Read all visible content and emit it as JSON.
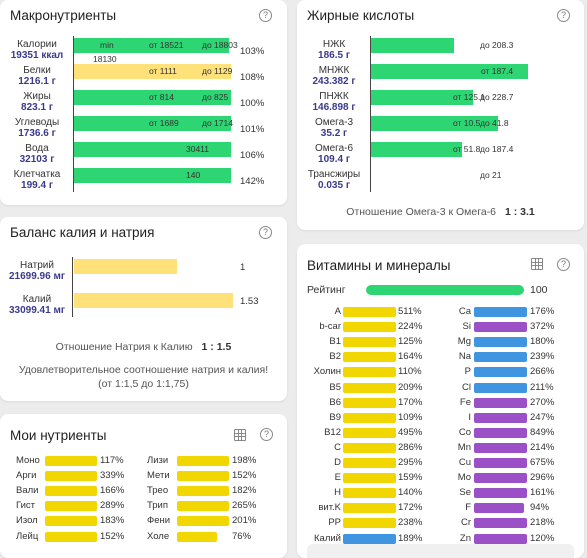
{
  "macro": {
    "title": "Макронутриенты",
    "rows": [
      {
        "name": "Калории",
        "value": "19351 ккал",
        "fill": 0.99,
        "color": "green",
        "min_label": "min",
        "from": "от 18521",
        "to": "до 18803",
        "below": "18130",
        "pct": "103%"
      },
      {
        "name": "Белки",
        "value": "1216.1 г",
        "fill": 1.0,
        "color": "yellow",
        "from": "от 1111",
        "to": "до 1129",
        "pct": "108%"
      },
      {
        "name": "Жиры",
        "value": "823.1 г",
        "fill": 1.0,
        "color": "green",
        "from": "от 814",
        "to": "до 825",
        "pct": "100%"
      },
      {
        "name": "Углеводы",
        "value": "1736.6 г",
        "fill": 1.0,
        "color": "green",
        "from": "от 1689",
        "to": "до 1714",
        "pct": "101%"
      },
      {
        "name": "Вода",
        "value": "32103 г",
        "fill": 1.0,
        "color": "green",
        "center": "30411",
        "pct": "106%"
      },
      {
        "name": "Клетчатка",
        "value": "199.4 г",
        "fill": 1.0,
        "color": "green",
        "center": "140",
        "pct": "142%"
      }
    ]
  },
  "fat": {
    "title": "Жирные кислоты",
    "rows": [
      {
        "name": "НЖК",
        "value": "186.5 г",
        "fill": 0.53,
        "to": "до 208.3"
      },
      {
        "name": "МНЖК",
        "value": "243.382 г",
        "fill": 1.0,
        "center": "от 187.4"
      },
      {
        "name": "ПНЖК",
        "value": "146.898 г",
        "fill": 0.65,
        "from": "от 125.1",
        "to": "до 228.7"
      },
      {
        "name": "Омега-3",
        "value": "35.2 г",
        "fill": 0.81,
        "from": "от 10.5",
        "to": "до 41.8"
      },
      {
        "name": "Омега-6",
        "value": "109.4 г",
        "fill": 0.58,
        "from": "от 51.8",
        "to": "до 187.4"
      },
      {
        "name": "Трансжиры",
        "value": "0.035 г",
        "fill": 0.0,
        "to": "до 21"
      }
    ],
    "ratio_label": "Отношение Омега-3 к Омега-6",
    "ratio_value": "1 : 3.1"
  },
  "balance": {
    "title": "Баланс калия и натрия",
    "rows": [
      {
        "name": "Натрий",
        "value": "21699.96 мг",
        "fill": 0.65,
        "right": "1"
      },
      {
        "name": "Калий",
        "value": "33099.41 мг",
        "fill": 1.0,
        "right": "1.53"
      }
    ],
    "ratio_label": "Отношение Натрия к Калию",
    "ratio_value": "1 : 1.5",
    "note": "Удовлетворительное соотношение натрия и калия! (от 1:1,5 до 1:1,75)"
  },
  "vitamins": {
    "title": "Витамины и минералы",
    "rating_label": "Рейтинг",
    "rating_value": "100",
    "left": [
      {
        "n": "A",
        "p": "511%",
        "c": "y"
      },
      {
        "n": "b-car",
        "p": "224%",
        "c": "y"
      },
      {
        "n": "B1",
        "p": "125%",
        "c": "y"
      },
      {
        "n": "B2",
        "p": "164%",
        "c": "y"
      },
      {
        "n": "Холин",
        "p": "110%",
        "c": "y"
      },
      {
        "n": "B5",
        "p": "209%",
        "c": "y"
      },
      {
        "n": "B6",
        "p": "170%",
        "c": "y"
      },
      {
        "n": "B9",
        "p": "109%",
        "c": "y"
      },
      {
        "n": "B12",
        "p": "495%",
        "c": "y"
      },
      {
        "n": "C",
        "p": "286%",
        "c": "y"
      },
      {
        "n": "D",
        "p": "295%",
        "c": "y"
      },
      {
        "n": "E",
        "p": "159%",
        "c": "y"
      },
      {
        "n": "H",
        "p": "140%",
        "c": "y"
      },
      {
        "n": "вит.K",
        "p": "172%",
        "c": "y"
      },
      {
        "n": "PP",
        "p": "238%",
        "c": "y"
      },
      {
        "n": "Калий",
        "p": "189%",
        "c": "b"
      }
    ],
    "right": [
      {
        "n": "Ca",
        "p": "176%",
        "c": "b"
      },
      {
        "n": "Si",
        "p": "372%",
        "c": "p"
      },
      {
        "n": "Mg",
        "p": "180%",
        "c": "b"
      },
      {
        "n": "Na",
        "p": "239%",
        "c": "b"
      },
      {
        "n": "P",
        "p": "266%",
        "c": "b"
      },
      {
        "n": "Cl",
        "p": "211%",
        "c": "b"
      },
      {
        "n": "Fe",
        "p": "270%",
        "c": "p"
      },
      {
        "n": "I",
        "p": "247%",
        "c": "p"
      },
      {
        "n": "Co",
        "p": "849%",
        "c": "p"
      },
      {
        "n": "Mn",
        "p": "214%",
        "c": "p"
      },
      {
        "n": "Cu",
        "p": "675%",
        "c": "p"
      },
      {
        "n": "Mo",
        "p": "296%",
        "c": "p"
      },
      {
        "n": "Se",
        "p": "161%",
        "c": "p"
      },
      {
        "n": "F",
        "p": "94%",
        "c": "p",
        "fill": 0.94
      },
      {
        "n": "Cr",
        "p": "218%",
        "c": "p"
      },
      {
        "n": "Zn",
        "p": "120%",
        "c": "p"
      }
    ]
  },
  "mynut": {
    "title": "Мои нутриенты",
    "left": [
      {
        "n": "Моно",
        "p": "117%"
      },
      {
        "n": "Арги",
        "p": "339%"
      },
      {
        "n": "Вали",
        "p": "166%"
      },
      {
        "n": "Гист",
        "p": "289%"
      },
      {
        "n": "Изол",
        "p": "183%"
      },
      {
        "n": "Лейц",
        "p": "152%"
      }
    ],
    "right": [
      {
        "n": "Лизи",
        "p": "198%"
      },
      {
        "n": "Мети",
        "p": "152%"
      },
      {
        "n": "Трео",
        "p": "182%"
      },
      {
        "n": "Трип",
        "p": "265%"
      },
      {
        "n": "Фени",
        "p": "201%"
      },
      {
        "n": "Холе",
        "p": "76%",
        "fill": 0.76
      }
    ]
  }
}
